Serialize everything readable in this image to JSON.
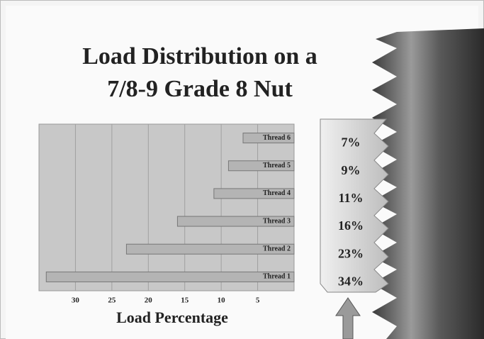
{
  "chart_data": {
    "type": "hbar",
    "title_lines": [
      "Load Distribution on a",
      "7/8-9 Grade 8 Nut"
    ],
    "x_label": "Load Percentage",
    "categories": [
      "Thread 1",
      "Thread 2",
      "Thread 3",
      "Thread 4",
      "Thread 5",
      "Thread 6"
    ],
    "values": [
      34,
      23,
      16,
      11,
      9,
      7
    ],
    "value_labels": [
      "34%",
      "23%",
      "16%",
      "11%",
      "9%",
      "7%"
    ],
    "xlim": [
      35,
      0
    ],
    "xticks": [
      30,
      25,
      20,
      15,
      10,
      5
    ],
    "grid": true,
    "color": "#b4b4b4"
  }
}
